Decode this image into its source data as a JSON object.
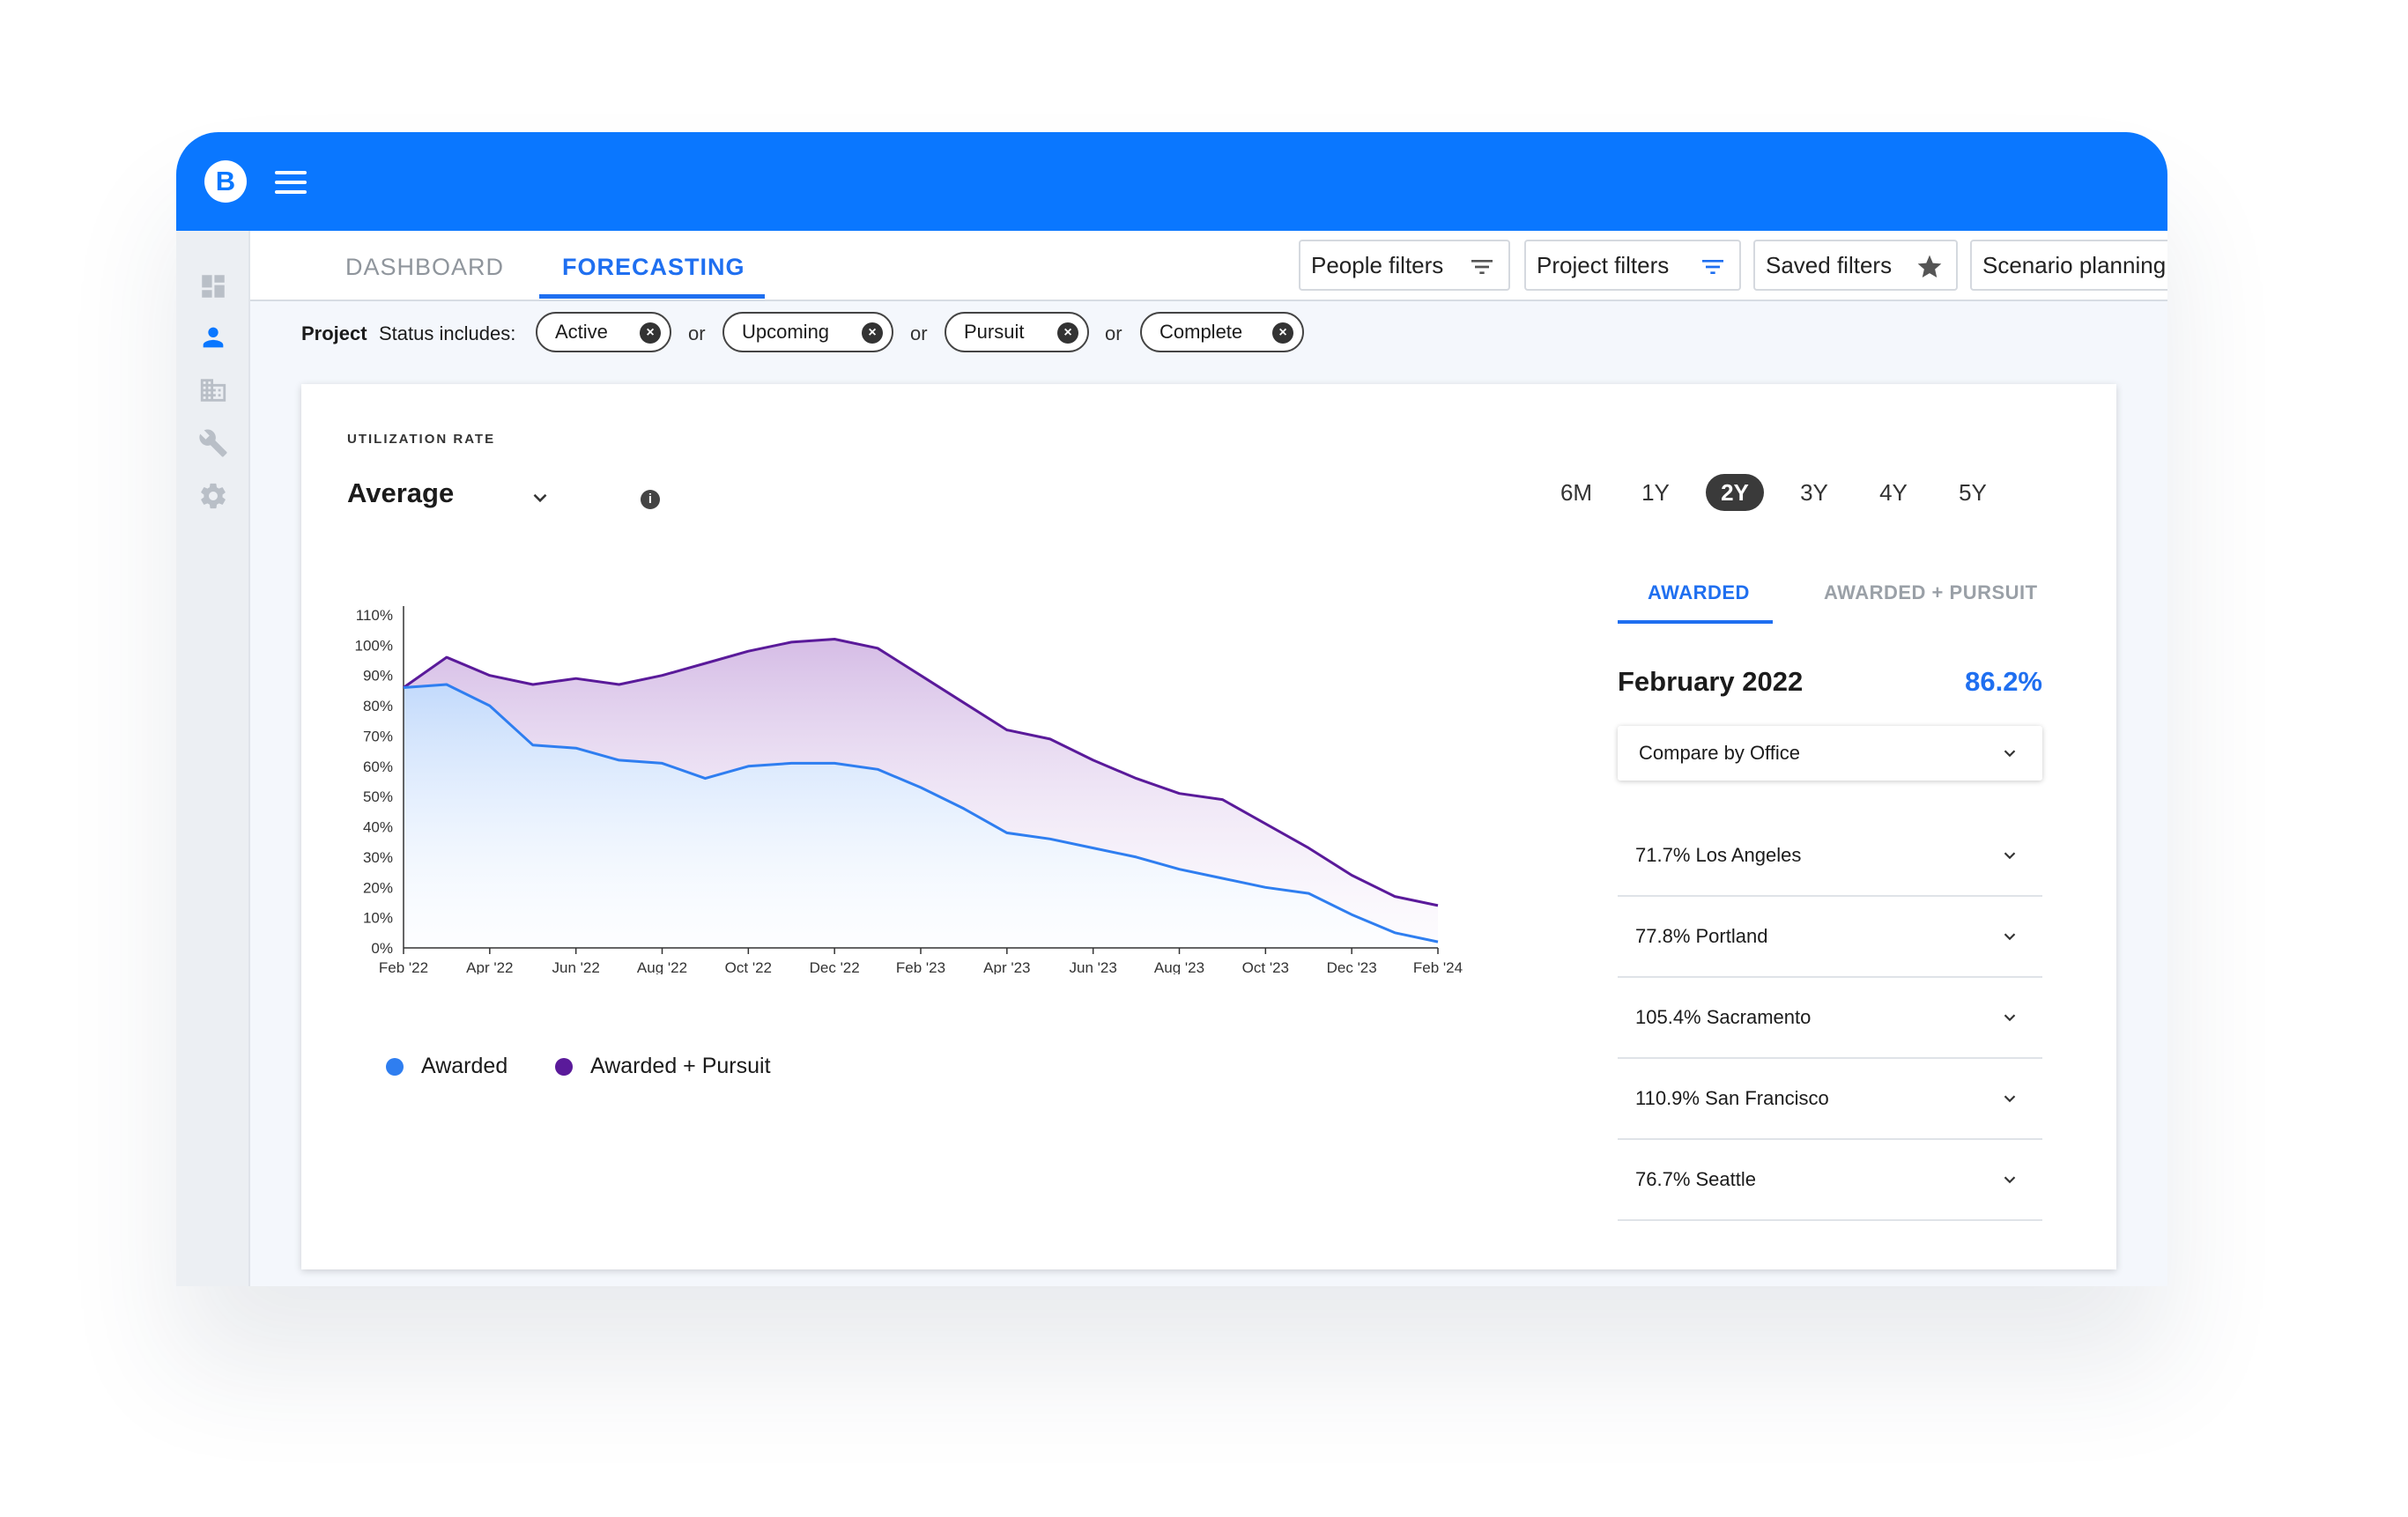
{
  "app": {
    "logo_letter": "B",
    "brand_color": "#0a77ff",
    "accent_color": "#1f6ff0"
  },
  "sidebar": {
    "icons": [
      "dashboard-icon",
      "person-icon",
      "building-icon",
      "wrench-icon",
      "gear-icon"
    ],
    "active": "person-icon"
  },
  "nav": {
    "tabs": [
      {
        "label": "DASHBOARD",
        "active": false
      },
      {
        "label": "FORECASTING",
        "active": true
      }
    ],
    "buttons": [
      {
        "label": "People filters",
        "icon": "filter-icon"
      },
      {
        "label": "Project filters",
        "icon": "filter-icon"
      },
      {
        "label": "Saved filters",
        "icon": "star-icon"
      },
      {
        "label": "Scenario planning",
        "icon": "trend-icon"
      }
    ]
  },
  "status_filter": {
    "prefix": "Project",
    "label": "Status includes:",
    "chips": [
      "Active",
      "Upcoming",
      "Pursuit",
      "Complete"
    ],
    "joiner": "or"
  },
  "card": {
    "kicker": "UTILIZATION RATE",
    "metric": "Average",
    "ranges": [
      "6M",
      "1Y",
      "2Y",
      "3Y",
      "4Y",
      "5Y"
    ],
    "selected_range": "2Y"
  },
  "legend": {
    "awarded": "Awarded",
    "awarded_pursuit": "Awarded + Pursuit"
  },
  "chart_data": {
    "type": "area",
    "x": [
      "Feb '22",
      "Mar '22",
      "Apr '22",
      "May '22",
      "Jun '22",
      "Jul '22",
      "Aug '22",
      "Sep '22",
      "Oct '22",
      "Nov '22",
      "Dec '22",
      "Jan '23",
      "Feb '23",
      "Mar '23",
      "Apr '23",
      "May '23",
      "Jun '23",
      "Jul '23",
      "Aug '23",
      "Sep '23",
      "Oct '23",
      "Nov '23",
      "Dec '23",
      "Jan '24",
      "Feb '24"
    ],
    "x_tick_labels": [
      "Feb '22",
      "Apr '22",
      "Jun '22",
      "Aug '22",
      "Oct '22",
      "Dec '22",
      "Feb '23",
      "Apr '23",
      "Jun '23",
      "Aug '23",
      "Oct '23",
      "Dec '23",
      "Feb '24"
    ],
    "y_tick_labels": [
      "0%",
      "10%",
      "20%",
      "30%",
      "40%",
      "50%",
      "60%",
      "70%",
      "80%",
      "90%",
      "100%",
      "110%"
    ],
    "ylim": [
      0,
      110
    ],
    "series": [
      {
        "name": "Awarded",
        "color": "#2f7ef0",
        "values": [
          86,
          87,
          80,
          67,
          66,
          62,
          61,
          56,
          60,
          61,
          61,
          59,
          53,
          46,
          38,
          36,
          33,
          30,
          26,
          23,
          20,
          18,
          11,
          5,
          2
        ]
      },
      {
        "name": "Awarded + Pursuit",
        "color": "#5a1a9a",
        "values": [
          86,
          96,
          90,
          87,
          89,
          87,
          90,
          94,
          98,
          101,
          102,
          99,
          90,
          81,
          72,
          69,
          62,
          56,
          51,
          49,
          41,
          33,
          24,
          17,
          14
        ]
      }
    ]
  },
  "side_panel": {
    "tabs": [
      "AWARDED",
      "AWARDED + PURSUIT"
    ],
    "month": "February 2022",
    "value": "86.2%",
    "compare_label": "Compare by Office",
    "offices": [
      "71.7% Los Angeles",
      "77.8% Portland",
      "105.4% Sacramento",
      "110.9% San Francisco",
      "76.7% Seattle"
    ]
  }
}
